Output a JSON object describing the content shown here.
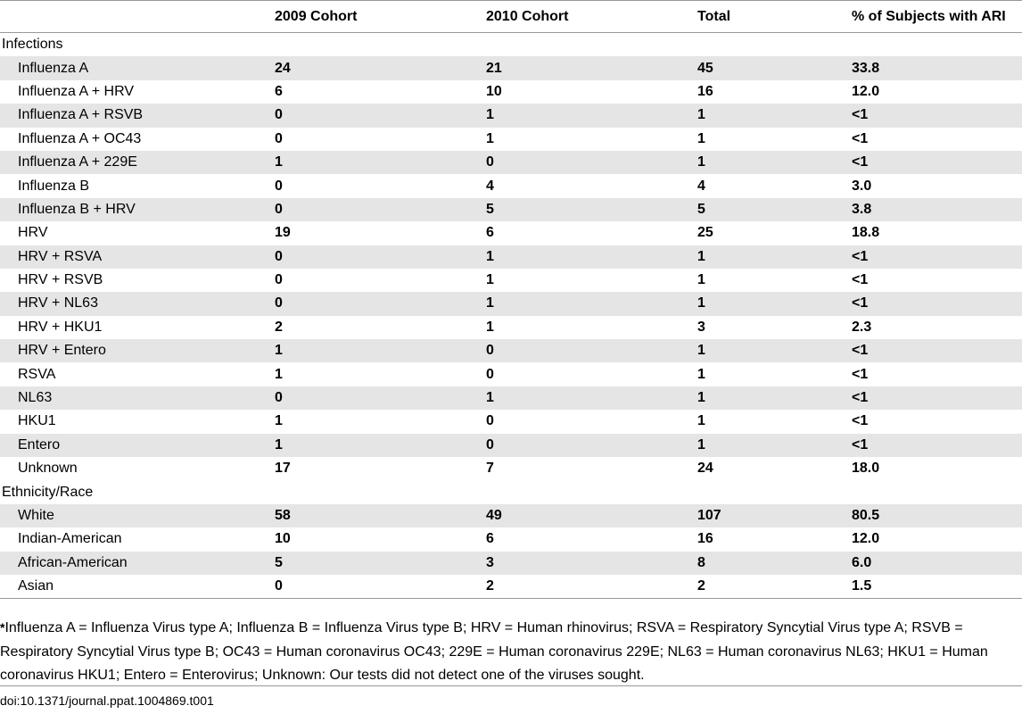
{
  "table": {
    "columns": [
      "",
      "2009 Cohort",
      "2010 Cohort",
      "Total",
      "% of Subjects with ARI"
    ],
    "sections": [
      {
        "title": "Infections",
        "rows": [
          {
            "label": "Influenza A",
            "c2009": "24",
            "c2010": "21",
            "total": "45",
            "pct": "33.8"
          },
          {
            "label": "Influenza A + HRV",
            "c2009": "6",
            "c2010": "10",
            "total": "16",
            "pct": "12.0"
          },
          {
            "label": "Influenza A + RSVB",
            "c2009": "0",
            "c2010": "1",
            "total": "1",
            "pct": "<1"
          },
          {
            "label": "Influenza A + OC43",
            "c2009": "0",
            "c2010": "1",
            "total": "1",
            "pct": "<1"
          },
          {
            "label": "Influenza A + 229E",
            "c2009": "1",
            "c2010": "0",
            "total": "1",
            "pct": "<1"
          },
          {
            "label": "Influenza B",
            "c2009": "0",
            "c2010": "4",
            "total": "4",
            "pct": "3.0"
          },
          {
            "label": "Influenza B + HRV",
            "c2009": "0",
            "c2010": "5",
            "total": "5",
            "pct": "3.8"
          },
          {
            "label": "HRV",
            "c2009": "19",
            "c2010": "6",
            "total": "25",
            "pct": "18.8"
          },
          {
            "label": "HRV + RSVA",
            "c2009": "0",
            "c2010": "1",
            "total": "1",
            "pct": "<1"
          },
          {
            "label": "HRV + RSVB",
            "c2009": "0",
            "c2010": "1",
            "total": "1",
            "pct": "<1"
          },
          {
            "label": "HRV + NL63",
            "c2009": "0",
            "c2010": "1",
            "total": "1",
            "pct": "<1"
          },
          {
            "label": "HRV + HKU1",
            "c2009": "2",
            "c2010": "1",
            "total": "3",
            "pct": "2.3"
          },
          {
            "label": "HRV + Entero",
            "c2009": "1",
            "c2010": "0",
            "total": "1",
            "pct": "<1"
          },
          {
            "label": "RSVA",
            "c2009": "1",
            "c2010": "0",
            "total": "1",
            "pct": "<1"
          },
          {
            "label": "NL63",
            "c2009": "0",
            "c2010": "1",
            "total": "1",
            "pct": "<1"
          },
          {
            "label": "HKU1",
            "c2009": "1",
            "c2010": "0",
            "total": "1",
            "pct": "<1"
          },
          {
            "label": "Entero",
            "c2009": "1",
            "c2010": "0",
            "total": "1",
            "pct": "<1"
          },
          {
            "label": "Unknown",
            "c2009": "17",
            "c2010": "7",
            "total": "24",
            "pct": "18.0"
          }
        ]
      },
      {
        "title": "Ethnicity/Race",
        "rows": [
          {
            "label": "White",
            "c2009": "58",
            "c2010": "49",
            "total": "107",
            "pct": "80.5"
          },
          {
            "label": "Indian-American",
            "c2009": "10",
            "c2010": "6",
            "total": "16",
            "pct": "12.0"
          },
          {
            "label": "African-American",
            "c2009": "5",
            "c2010": "3",
            "total": "8",
            "pct": "6.0"
          },
          {
            "label": "Asian",
            "c2009": "0",
            "c2010": "2",
            "total": "2",
            "pct": "1.5"
          }
        ]
      }
    ]
  },
  "footnote": {
    "marker": "*",
    "text": "Influenza A = Influenza Virus type A; Influenza B = Influenza Virus type B; HRV = Human rhinovirus; RSVA = Respiratory Syncytial Virus type A; RSVB = Respiratory Syncytial Virus type B; OC43 = Human coronavirus OC43; 229E = Human coronavirus 229E; NL63 = Human coronavirus NL63; HKU1 = Human coronavirus HKU1; Entero = Enterovirus; Unknown: Our tests did not detect one of the viruses sought."
  },
  "doi": "doi:10.1371/journal.ppat.1004869.t001"
}
